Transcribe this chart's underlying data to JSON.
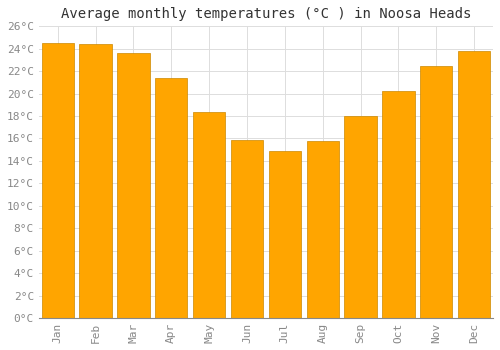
{
  "title": "Average monthly temperatures (°C ) in Noosa Heads",
  "months": [
    "Jan",
    "Feb",
    "Mar",
    "Apr",
    "May",
    "Jun",
    "Jul",
    "Aug",
    "Sep",
    "Oct",
    "Nov",
    "Dec"
  ],
  "values": [
    24.5,
    24.4,
    23.6,
    21.4,
    18.4,
    15.9,
    14.9,
    15.8,
    18.0,
    20.2,
    22.5,
    23.8
  ],
  "bar_color": "#FFA500",
  "bar_edge_color": "#CC8800",
  "background_color": "#FFFFFF",
  "grid_color": "#DDDDDD",
  "text_color": "#888888",
  "title_color": "#333333",
  "ylim": [
    0,
    26
  ],
  "yticks": [
    0,
    2,
    4,
    6,
    8,
    10,
    12,
    14,
    16,
    18,
    20,
    22,
    24,
    26
  ],
  "title_fontsize": 10,
  "tick_fontsize": 8,
  "bar_width": 0.85
}
